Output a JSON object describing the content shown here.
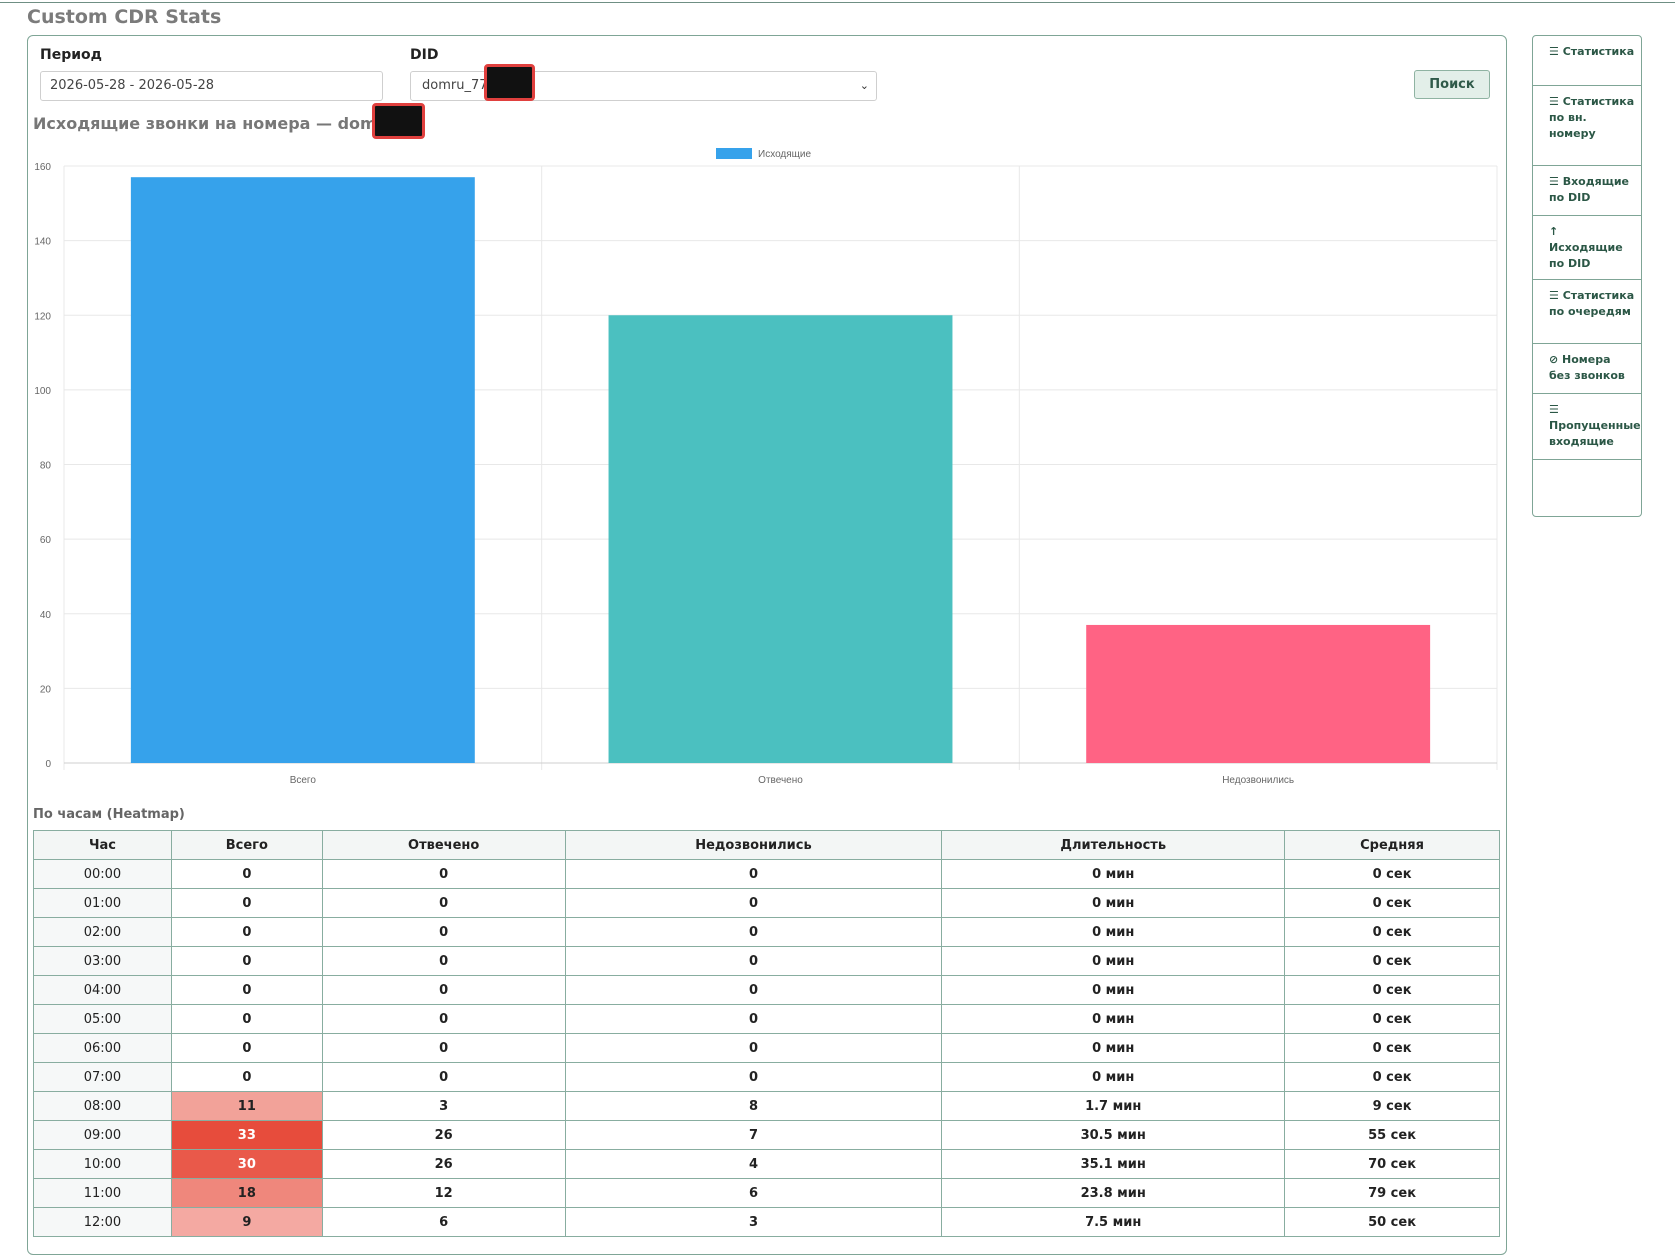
{
  "page": {
    "title": "Custom CDR Stats"
  },
  "filters": {
    "period_label": "Период",
    "period_value": "2026-05-28 - 2026-05-28",
    "did_label": "DID",
    "did_value": "domru_77",
    "search_label": "Поиск"
  },
  "chart_heading": "Исходящие звонки на номера — domru_77",
  "chart_data": {
    "type": "bar",
    "categories": [
      "Всего",
      "Отвечено",
      "Недозвонились"
    ],
    "series": [
      {
        "name": "Исходящие",
        "values": [
          157,
          120,
          37
        ]
      }
    ],
    "colors": [
      "#36a2eb",
      "#4bc0c0",
      "#ff6384"
    ],
    "legend_color": "#36a2eb",
    "ylim": [
      0,
      160
    ],
    "yticks": [
      0,
      20,
      40,
      60,
      80,
      100,
      120,
      140,
      160
    ],
    "grid": true,
    "legend_position": "top-center"
  },
  "heatmap": {
    "title": "По часам (Heatmap)",
    "columns": [
      "Час",
      "Всего",
      "Отвечено",
      "Недозвонились",
      "Длительность",
      "Средняя"
    ],
    "rows": [
      [
        "00:00",
        "0",
        "0",
        "0",
        "0 мин",
        "0 сек"
      ],
      [
        "01:00",
        "0",
        "0",
        "0",
        "0 мин",
        "0 сек"
      ],
      [
        "02:00",
        "0",
        "0",
        "0",
        "0 мин",
        "0 сек"
      ],
      [
        "03:00",
        "0",
        "0",
        "0",
        "0 мин",
        "0 сек"
      ],
      [
        "04:00",
        "0",
        "0",
        "0",
        "0 мин",
        "0 сек"
      ],
      [
        "05:00",
        "0",
        "0",
        "0",
        "0 мин",
        "0 сек"
      ],
      [
        "06:00",
        "0",
        "0",
        "0",
        "0 мин",
        "0 сек"
      ],
      [
        "07:00",
        "0",
        "0",
        "0",
        "0 мин",
        "0 сек"
      ],
      [
        "08:00",
        "11",
        "3",
        "8",
        "1.7 мин",
        "9 сек"
      ],
      [
        "09:00",
        "33",
        "26",
        "7",
        "30.5 мин",
        "55 сек"
      ],
      [
        "10:00",
        "30",
        "26",
        "4",
        "35.1 мин",
        "70 сек"
      ],
      [
        "11:00",
        "18",
        "12",
        "6",
        "23.8 мин",
        "79 сек"
      ],
      [
        "12:00",
        "9",
        "6",
        "3",
        "7.5 мин",
        "50 сек"
      ]
    ],
    "heat_color": "#e74c3c"
  },
  "side_nav": {
    "items": [
      {
        "icon": "list-icon",
        "glyph": "☰",
        "label": "Статистика"
      },
      {
        "icon": "list-icon",
        "glyph": "☰",
        "label": "Статистика по вн. номеру"
      },
      {
        "icon": "list-icon",
        "glyph": "☰",
        "label": "Входящие по DID"
      },
      {
        "icon": "arrow-up-icon",
        "glyph": "↑",
        "label": "Исходящие по DID"
      },
      {
        "icon": "list-icon",
        "glyph": "☰",
        "label": "Статистика по очередям"
      },
      {
        "icon": "ban-icon",
        "glyph": "⊘",
        "label": "Номера без звонков"
      },
      {
        "icon": "list-icon",
        "glyph": "☰",
        "label": "Пропущенные входящие"
      }
    ]
  }
}
